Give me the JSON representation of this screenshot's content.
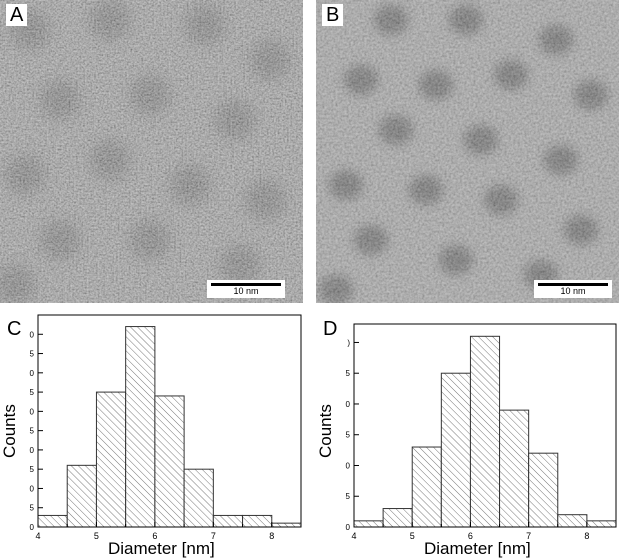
{
  "panels": {
    "A": {
      "letter": "A",
      "scalebar": "10 nm"
    },
    "B": {
      "letter": "B",
      "scalebar": "10 nm"
    }
  },
  "chart_data": [
    {
      "panel": "C",
      "type": "bar",
      "xlabel": "Diameter [nm]",
      "ylabel": "Counts",
      "bin_width": 0.5,
      "bin_starts": [
        4.0,
        4.5,
        5.0,
        5.5,
        6.0,
        6.5,
        7.0,
        7.5,
        8.0
      ],
      "values": [
        3,
        16,
        35,
        52,
        34,
        15,
        3,
        3,
        1
      ],
      "xlim": [
        4.0,
        8.5
      ],
      "ylim": [
        0,
        55
      ],
      "xticks": [
        "4",
        "5",
        "6",
        "7",
        "8"
      ],
      "yticks": [
        "0",
        "5",
        "0",
        "5",
        "0",
        "5",
        "0",
        "5",
        "0",
        "5",
        "0"
      ]
    },
    {
      "panel": "D",
      "type": "bar",
      "xlabel": "Diameter [nm]",
      "ylabel": "Counts",
      "bin_width": 0.5,
      "bin_starts": [
        4.0,
        4.5,
        5.0,
        5.5,
        6.0,
        6.5,
        7.0,
        7.5,
        8.0
      ],
      "values": [
        1,
        3,
        13,
        25,
        31,
        19,
        12,
        2,
        1
      ],
      "xlim": [
        4.0,
        8.5
      ],
      "ylim": [
        0,
        33
      ],
      "xticks": [
        "4",
        "5",
        "6",
        "7",
        "8"
      ],
      "yticks": [
        "0",
        "5",
        "0",
        "5",
        "0",
        "5",
        ")"
      ]
    }
  ]
}
